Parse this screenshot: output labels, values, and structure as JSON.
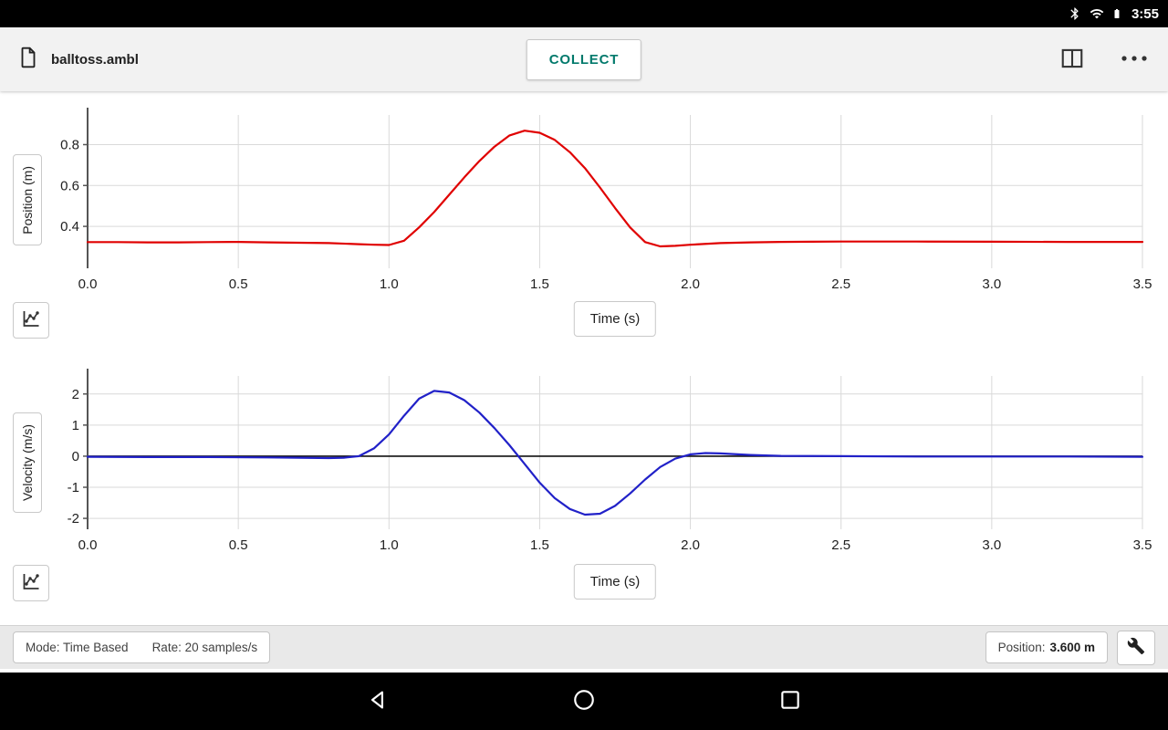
{
  "status_bar": {
    "time": "3:55"
  },
  "toolbar": {
    "filename": "balltoss.ambl",
    "collect_button": "COLLECT"
  },
  "graphs": [
    {
      "y_axis_label": "Position (m)",
      "x_axis_label": "Time (s)"
    },
    {
      "y_axis_label": "Velocity (m/s)",
      "x_axis_label": "Time (s)"
    }
  ],
  "status_footer": {
    "mode_label": "Mode: Time Based",
    "rate_label": "Rate: 20 samples/s",
    "position_label": "Position:",
    "position_value": "3.600 m"
  },
  "colors": {
    "accent_teal": "#00796b",
    "position_line": "#e00000",
    "velocity_line": "#2121c8",
    "grid": "#d9d9d9",
    "axis": "#555555"
  },
  "chart_data": [
    {
      "type": "line",
      "title": "",
      "xlabel": "Time (s)",
      "ylabel": "Position (m)",
      "xlim": [
        0,
        3.5
      ],
      "ylim": [
        0.195,
        0.945
      ],
      "xticks": [
        0,
        0.5,
        1,
        1.5,
        2,
        2.5,
        3,
        3.5
      ],
      "xtick_labels": [
        "0.0",
        "0.5",
        "1.0",
        "1.5",
        "2.0",
        "2.5",
        "3.0",
        "3.5"
      ],
      "yticks": [
        0.4,
        0.6,
        0.8
      ],
      "ytick_labels": [
        "0.4",
        "0.6",
        "0.8"
      ],
      "grid": true,
      "zero_line": false,
      "legend": "none",
      "series": [
        {
          "name": "position",
          "color": "#e00000",
          "points": [
            [
              0,
              0.323
            ],
            [
              0.1,
              0.323
            ],
            [
              0.2,
              0.322
            ],
            [
              0.3,
              0.322
            ],
            [
              0.4,
              0.323
            ],
            [
              0.5,
              0.324
            ],
            [
              0.6,
              0.322
            ],
            [
              0.7,
              0.32
            ],
            [
              0.8,
              0.318
            ],
            [
              0.9,
              0.313
            ],
            [
              0.95,
              0.31
            ],
            [
              1.0,
              0.309
            ],
            [
              1.05,
              0.33
            ],
            [
              1.1,
              0.395
            ],
            [
              1.15,
              0.47
            ],
            [
              1.2,
              0.555
            ],
            [
              1.25,
              0.64
            ],
            [
              1.3,
              0.72
            ],
            [
              1.35,
              0.79
            ],
            [
              1.4,
              0.845
            ],
            [
              1.45,
              0.868
            ],
            [
              1.5,
              0.858
            ],
            [
              1.55,
              0.823
            ],
            [
              1.6,
              0.763
            ],
            [
              1.65,
              0.685
            ],
            [
              1.7,
              0.59
            ],
            [
              1.75,
              0.49
            ],
            [
              1.8,
              0.395
            ],
            [
              1.85,
              0.323
            ],
            [
              1.9,
              0.302
            ],
            [
              1.95,
              0.305
            ],
            [
              2.0,
              0.31
            ],
            [
              2.1,
              0.318
            ],
            [
              2.2,
              0.322
            ],
            [
              2.3,
              0.324
            ],
            [
              2.4,
              0.325
            ],
            [
              2.5,
              0.326
            ],
            [
              2.75,
              0.326
            ],
            [
              3.0,
              0.325
            ],
            [
              3.25,
              0.324
            ],
            [
              3.5,
              0.324
            ]
          ]
        }
      ]
    },
    {
      "type": "line",
      "title": "",
      "xlabel": "Time (s)",
      "ylabel": "Velocity (m/s)",
      "xlim": [
        0,
        3.5
      ],
      "ylim": [
        -2.35,
        2.58
      ],
      "xticks": [
        0,
        0.5,
        1,
        1.5,
        2,
        2.5,
        3,
        3.5
      ],
      "xtick_labels": [
        "0.0",
        "0.5",
        "1.0",
        "1.5",
        "2.0",
        "2.5",
        "3.0",
        "3.5"
      ],
      "yticks": [
        -2,
        -1,
        0,
        1,
        2
      ],
      "ytick_labels": [
        "-2",
        "-1",
        "0",
        "1",
        "2"
      ],
      "grid": true,
      "zero_line": true,
      "legend": "none",
      "series": [
        {
          "name": "velocity",
          "color": "#2121c8",
          "points": [
            [
              0,
              -0.02
            ],
            [
              0.2,
              -0.03
            ],
            [
              0.4,
              -0.03
            ],
            [
              0.6,
              -0.04
            ],
            [
              0.7,
              -0.05
            ],
            [
              0.8,
              -0.06
            ],
            [
              0.85,
              -0.05
            ],
            [
              0.9,
              0.0
            ],
            [
              0.95,
              0.25
            ],
            [
              1.0,
              0.7
            ],
            [
              1.05,
              1.3
            ],
            [
              1.1,
              1.85
            ],
            [
              1.15,
              2.1
            ],
            [
              1.2,
              2.05
            ],
            [
              1.25,
              1.8
            ],
            [
              1.3,
              1.4
            ],
            [
              1.35,
              0.9
            ],
            [
              1.4,
              0.35
            ],
            [
              1.45,
              -0.25
            ],
            [
              1.5,
              -0.85
            ],
            [
              1.55,
              -1.35
            ],
            [
              1.6,
              -1.7
            ],
            [
              1.65,
              -1.88
            ],
            [
              1.7,
              -1.85
            ],
            [
              1.75,
              -1.6
            ],
            [
              1.8,
              -1.2
            ],
            [
              1.85,
              -0.75
            ],
            [
              1.9,
              -0.35
            ],
            [
              1.95,
              -0.08
            ],
            [
              2.0,
              0.06
            ],
            [
              2.05,
              0.1
            ],
            [
              2.1,
              0.09
            ],
            [
              2.2,
              0.04
            ],
            [
              2.3,
              0.01
            ],
            [
              2.5,
              0.0
            ],
            [
              2.75,
              -0.01
            ],
            [
              3.0,
              -0.01
            ],
            [
              3.25,
              -0.01
            ],
            [
              3.5,
              -0.02
            ]
          ]
        }
      ]
    }
  ]
}
